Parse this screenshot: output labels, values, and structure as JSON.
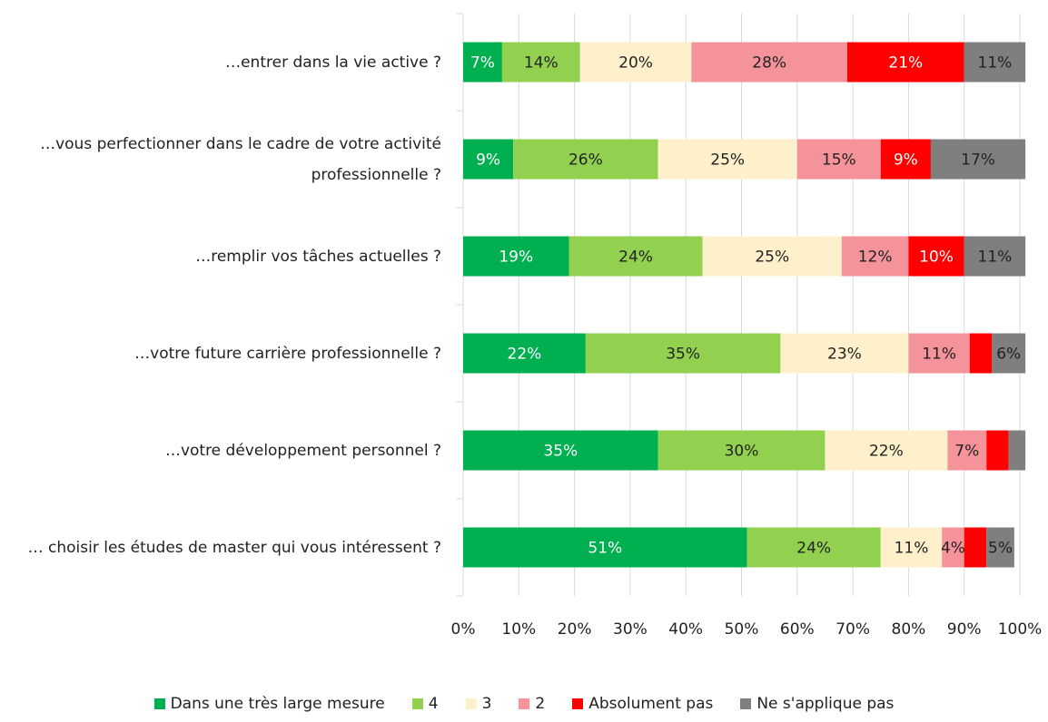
{
  "chart_data": {
    "type": "stacked_bar_horizontal",
    "categories": [
      "…entrer dans la vie active ?",
      "…vous perfectionner dans le cadre de votre activité professionnelle ?",
      "…remplir vos tâches actuelles ?",
      "…votre future carrière professionnelle ?",
      "…votre développement personnel ?",
      "… choisir les études de master qui vous intéressent ?"
    ],
    "series": [
      {
        "name": "Dans une très large mesure",
        "color": "#00b050",
        "label_color": "#ffffff",
        "values": [
          7,
          9,
          19,
          22,
          35,
          51
        ],
        "value_labels": [
          "7%",
          "9%",
          "19%",
          "22%",
          "35%",
          "51%"
        ]
      },
      {
        "name": "4",
        "color": "#92d050",
        "label_color": "#222222",
        "values": [
          14,
          26,
          24,
          35,
          30,
          24
        ],
        "value_labels": [
          "14%",
          "26%",
          "24%",
          "35%",
          "30%",
          "24%"
        ]
      },
      {
        "name": "3",
        "color": "#fff0cc",
        "label_color": "#222222",
        "values": [
          20,
          25,
          25,
          23,
          22,
          11
        ],
        "value_labels": [
          "20%",
          "25%",
          "25%",
          "23%",
          "22%",
          "11%"
        ]
      },
      {
        "name": "2",
        "color": "#f4939a",
        "label_color": "#222222",
        "values": [
          28,
          15,
          12,
          11,
          7,
          4
        ],
        "value_labels": [
          "28%",
          "15%",
          "12%",
          "11%",
          "7%",
          "4%"
        ]
      },
      {
        "name": "Absolument pas",
        "color": "#ff0000",
        "label_color": "#ffffff",
        "values": [
          21,
          9,
          10,
          4,
          4,
          4
        ],
        "value_labels": [
          "21%",
          "9%",
          "10%",
          null,
          null,
          null
        ]
      },
      {
        "name": "Ne s'applique pas",
        "color": "#7f7f7f",
        "label_color": "#222222",
        "values": [
          11,
          17,
          11,
          6,
          3,
          5
        ],
        "value_labels": [
          "11%",
          "17%",
          "11%",
          "6%",
          null,
          "5%"
        ]
      }
    ],
    "xlim": [
      0,
      100
    ],
    "xticks": [
      {
        "value": 0,
        "label": "0%"
      },
      {
        "value": 10,
        "label": "10%"
      },
      {
        "value": 20,
        "label": "20%"
      },
      {
        "value": 30,
        "label": "30%"
      },
      {
        "value": 40,
        "label": "40%"
      },
      {
        "value": 50,
        "label": "50%"
      },
      {
        "value": 60,
        "label": "60%"
      },
      {
        "value": 70,
        "label": "70%"
      },
      {
        "value": 80,
        "label": "80%"
      },
      {
        "value": 90,
        "label": "90%"
      },
      {
        "value": 100,
        "label": "100%"
      }
    ],
    "grid": true,
    "legend": "bottom"
  }
}
